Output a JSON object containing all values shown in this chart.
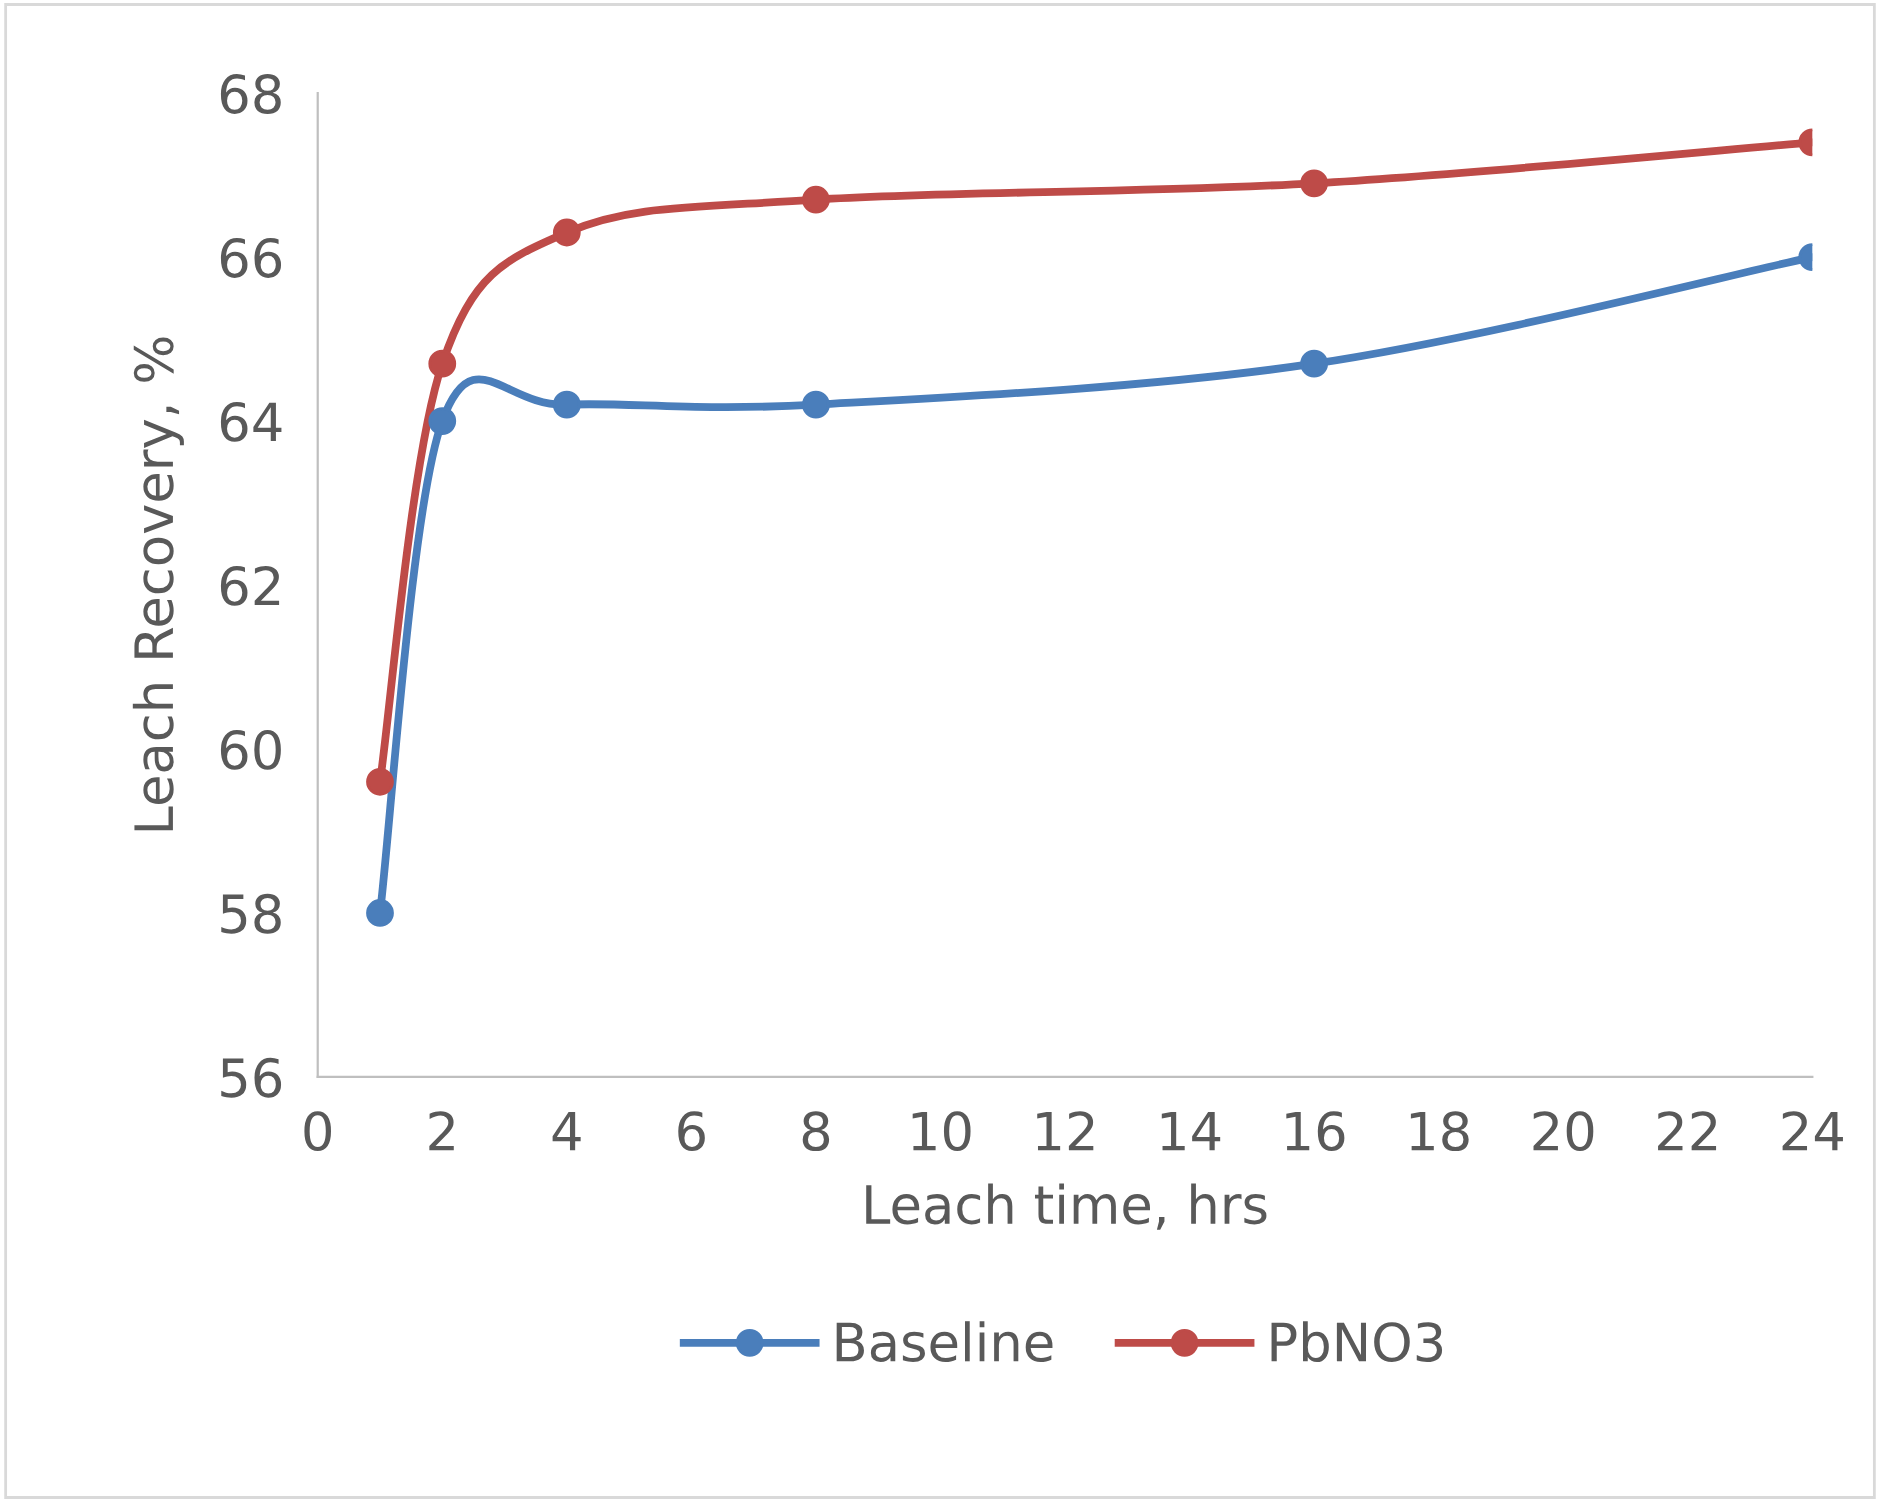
{
  "chart_data": {
    "type": "line",
    "xlabel": "Leach time, hrs",
    "ylabel": "Leach Recovery, %",
    "x": [
      1,
      2,
      4,
      8,
      16,
      24
    ],
    "series": [
      {
        "name": "Baseline",
        "color": "#4a7ebb",
        "values": [
          58.0,
          64.0,
          64.2,
          64.2,
          64.7,
          66.0
        ]
      },
      {
        "name": "PbNO3",
        "color": "#be4b48",
        "values": [
          59.6,
          64.7,
          66.3,
          66.7,
          66.9,
          67.4
        ]
      }
    ],
    "xlim": [
      0,
      24
    ],
    "xticks": [
      0,
      2,
      4,
      6,
      8,
      10,
      12,
      14,
      16,
      18,
      20,
      22,
      24
    ],
    "ylim": [
      56,
      68
    ],
    "yticks": [
      56,
      58,
      60,
      62,
      64,
      66,
      68
    ],
    "grid": false,
    "legend": "bottom",
    "marker": "circle",
    "line_style": "solid"
  }
}
